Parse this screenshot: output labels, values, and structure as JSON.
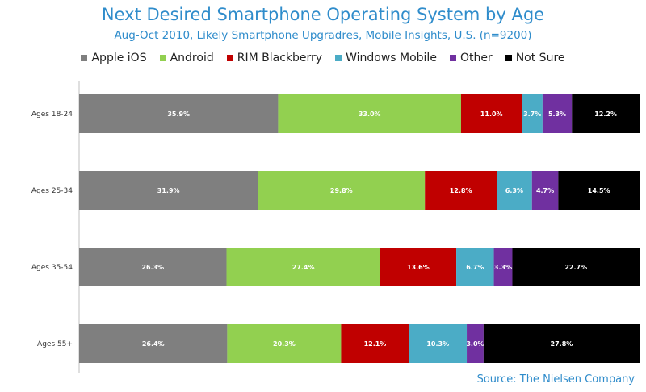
{
  "title": "Next Desired Smartphone Operating System by Age",
  "subtitle": "Aug-Oct 2010, Likely Smartphone Upgradres, Mobile Insights, U.S. (n=9200)",
  "source": "Source: The Nielsen Company",
  "chart_data": {
    "type": "bar",
    "orientation": "horizontal",
    "stacked": true,
    "percent_stacked": true,
    "title": "Next Desired Smartphone Operating System by Age",
    "subtitle": "Aug-Oct 2010, Likely Smartphone Upgradres, Mobile Insights, U.S. (n=9200)",
    "legend_position": "top",
    "grid": false,
    "categories": [
      "Ages 18-24",
      "Ages 25-34",
      "Ages 35-54",
      "Ages 55+"
    ],
    "series": [
      {
        "name": "Apple iOS",
        "color": "#7f7f7f",
        "values": [
          35.9,
          31.9,
          26.3,
          26.4
        ],
        "labels": [
          "35.9%",
          "31.9%",
          "26.3%",
          "26.4%"
        ]
      },
      {
        "name": "Android",
        "color": "#92d050",
        "values": [
          33.0,
          29.8,
          27.4,
          20.3
        ],
        "labels": [
          "33.0%",
          "29.8%",
          "27.4%",
          "20.3%"
        ]
      },
      {
        "name": "RIM Blackberry",
        "color": "#c00000",
        "values": [
          11.0,
          12.8,
          13.6,
          12.1
        ],
        "labels": [
          "11.0%",
          "12.8%",
          "13.6%",
          "12.1%"
        ]
      },
      {
        "name": "Windows Mobile",
        "color": "#4bacc6",
        "values": [
          3.7,
          6.3,
          6.7,
          10.3
        ],
        "labels": [
          "3.7%",
          "6.3%",
          "6.7%",
          "10.3%"
        ]
      },
      {
        "name": "Other",
        "color": "#7030a0",
        "values": [
          5.3,
          4.7,
          3.3,
          3.0
        ],
        "labels": [
          "5.3%",
          "4.7%",
          "3.3%",
          "3.0%"
        ]
      },
      {
        "name": "Not Sure",
        "color": "#000000",
        "values": [
          12.2,
          14.5,
          22.7,
          27.8
        ],
        "labels": [
          "12.2%",
          "14.5%",
          "22.7%",
          "27.8%"
        ]
      }
    ],
    "xlim": [
      0,
      100
    ]
  }
}
